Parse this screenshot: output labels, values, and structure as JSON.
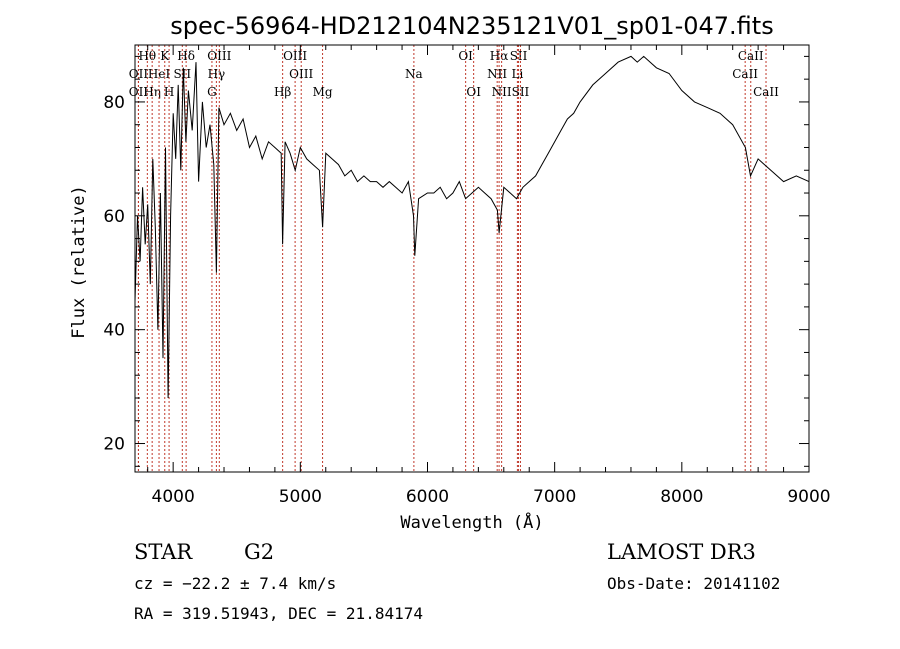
{
  "chart_data": {
    "type": "line",
    "title": "spec-56964-HD212104N235121V01_sp01-047.fits",
    "xlabel": "Wavelength (Å)",
    "ylabel": "Flux (relative)",
    "xlim": [
      3700,
      9000
    ],
    "ylim": [
      15,
      90
    ],
    "x_ticks": [
      4000,
      5000,
      6000,
      7000,
      8000,
      9000
    ],
    "y_ticks": [
      20,
      40,
      60,
      80
    ],
    "grid": false,
    "line_color": "#000000",
    "marker_color": "#c0392b",
    "series": [
      {
        "name": "spectrum",
        "x": [
          3700,
          3720,
          3740,
          3760,
          3780,
          3800,
          3820,
          3840,
          3860,
          3880,
          3900,
          3920,
          3940,
          3960,
          3980,
          4000,
          4020,
          4040,
          4060,
          4080,
          4100,
          4120,
          4150,
          4180,
          4200,
          4230,
          4260,
          4290,
          4320,
          4340,
          4360,
          4400,
          4450,
          4500,
          4550,
          4600,
          4650,
          4700,
          4750,
          4800,
          4850,
          4861,
          4880,
          4920,
          4960,
          5000,
          5050,
          5100,
          5150,
          5175,
          5200,
          5250,
          5300,
          5350,
          5400,
          5450,
          5500,
          5550,
          5600,
          5650,
          5700,
          5750,
          5800,
          5850,
          5890,
          5900,
          5930,
          6000,
          6050,
          6100,
          6150,
          6200,
          6250,
          6300,
          6350,
          6400,
          6450,
          6500,
          6550,
          6563,
          6600,
          6650,
          6700,
          6750,
          6800,
          6850,
          6900,
          6950,
          7000,
          7050,
          7100,
          7150,
          7200,
          7300,
          7400,
          7500,
          7600,
          7650,
          7700,
          7800,
          7900,
          8000,
          8100,
          8200,
          8300,
          8400,
          8500,
          8540,
          8600,
          8700,
          8800,
          8900,
          9000
        ],
        "y": [
          45,
          60,
          52,
          65,
          55,
          62,
          48,
          70,
          58,
          40,
          64,
          35,
          72,
          28,
          60,
          78,
          70,
          83,
          68,
          86,
          73,
          82,
          75,
          87,
          66,
          80,
          72,
          76,
          69,
          50,
          79,
          76,
          78,
          75,
          77,
          72,
          74,
          70,
          73,
          72,
          71,
          55,
          73,
          71,
          68,
          72,
          70,
          69,
          68,
          58,
          71,
          70,
          69,
          67,
          68,
          66,
          67,
          66,
          66,
          65,
          66,
          65,
          64,
          66,
          60,
          53,
          63,
          64,
          64,
          65,
          63,
          64,
          66,
          63,
          64,
          65,
          64,
          63,
          61,
          57,
          65,
          64,
          63,
          65,
          66,
          67,
          69,
          71,
          73,
          75,
          77,
          78,
          80,
          83,
          85,
          87,
          88,
          87,
          88,
          86,
          85,
          82,
          80,
          79,
          78,
          76,
          72,
          67,
          70,
          68,
          66,
          67,
          66
        ]
      }
    ],
    "line_markers": [
      {
        "label": "OII",
        "wl": 3727,
        "row": 3
      },
      {
        "label": "Hθ",
        "wl": 3797,
        "row": 1
      },
      {
        "label": "OII",
        "wl": 3727,
        "row": 2
      },
      {
        "label": "Hη",
        "wl": 3835,
        "row": 3
      },
      {
        "label": "HeI",
        "wl": 3889,
        "row": 2
      },
      {
        "label": "K",
        "wl": 3934,
        "row": 1
      },
      {
        "label": "H",
        "wl": 3968,
        "row": 3
      },
      {
        "label": "SII",
        "wl": 4072,
        "row": 2
      },
      {
        "label": "Hδ",
        "wl": 4102,
        "row": 1
      },
      {
        "label": "OIII",
        "wl": 4363,
        "row": 1
      },
      {
        "label": "Hγ",
        "wl": 4340,
        "row": 2
      },
      {
        "label": "G",
        "wl": 4305,
        "row": 3
      },
      {
        "label": "Hβ",
        "wl": 4861,
        "row": 3
      },
      {
        "label": "OIII",
        "wl": 4959,
        "row": 1
      },
      {
        "label": "OIII",
        "wl": 5007,
        "row": 2
      },
      {
        "label": "Mg",
        "wl": 5175,
        "row": 3
      },
      {
        "label": "Na",
        "wl": 5893,
        "row": 2
      },
      {
        "label": "OI",
        "wl": 6300,
        "row": 1
      },
      {
        "label": "OI",
        "wl": 6363,
        "row": 3
      },
      {
        "label": "Hα",
        "wl": 6563,
        "row": 1
      },
      {
        "label": "NII",
        "wl": 6548,
        "row": 2
      },
      {
        "label": "NII",
        "wl": 6583,
        "row": 3
      },
      {
        "label": "SII",
        "wl": 6716,
        "row": 1
      },
      {
        "label": "Li",
        "wl": 6707,
        "row": 2
      },
      {
        "label": "SII",
        "wl": 6731,
        "row": 3
      },
      {
        "label": "CaII",
        "wl": 8542,
        "row": 1
      },
      {
        "label": "CaII",
        "wl": 8498,
        "row": 2
      },
      {
        "label": "CaII",
        "wl": 8662,
        "row": 3
      }
    ]
  },
  "info": {
    "object_class": "STAR",
    "subclass": "G2",
    "survey": "LAMOST DR3",
    "redshift": "cz = −22.2 ± 7.4 km/s",
    "obs_date": "Obs-Date: 20141102",
    "coords": "RA = 319.51943, DEC =  21.84174"
  }
}
